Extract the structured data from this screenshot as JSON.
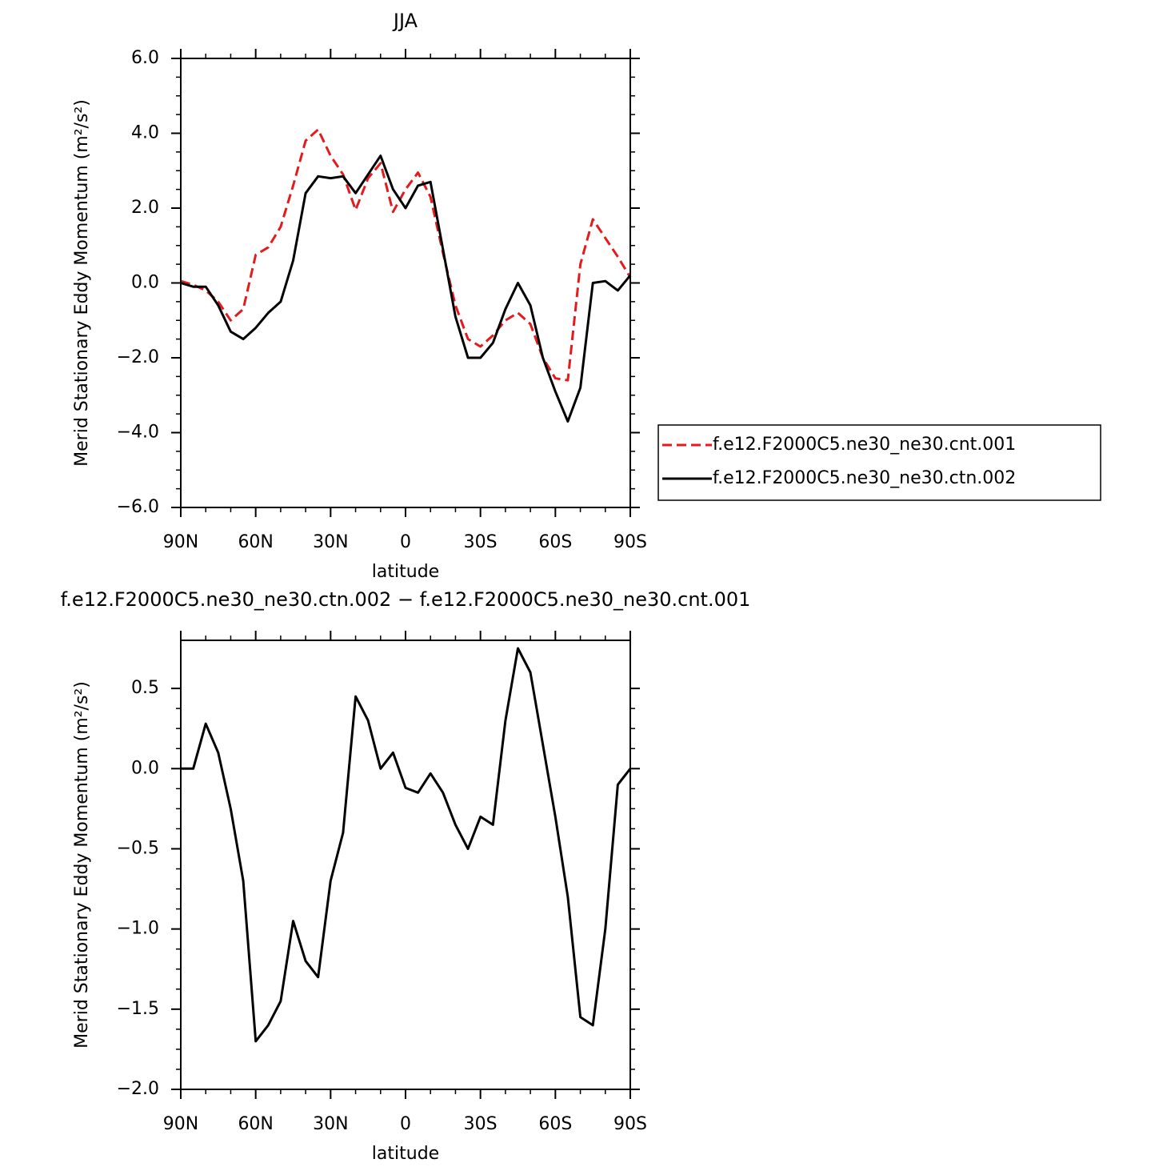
{
  "chart_data": [
    {
      "type": "line",
      "title": "JJA",
      "ylabel": "Merid Stationary Eddy Momentum (m²/s²)",
      "xlabel": "latitude",
      "x": [
        90,
        85,
        80,
        75,
        70,
        65,
        60,
        55,
        50,
        45,
        40,
        35,
        30,
        25,
        20,
        15,
        10,
        5,
        0,
        -5,
        -10,
        -15,
        -20,
        -25,
        -30,
        -35,
        -40,
        -45,
        -50,
        -55,
        -60,
        -65,
        -70,
        -75,
        -80,
        -85,
        -90
      ],
      "xlim": [
        90,
        -90
      ],
      "xticks": [
        {
          "value": 90,
          "label": "90N"
        },
        {
          "value": 60,
          "label": "60N"
        },
        {
          "value": 30,
          "label": "30N"
        },
        0,
        {
          "value": -30,
          "label": "30S"
        },
        {
          "value": -60,
          "label": "60S"
        },
        {
          "value": -90,
          "label": "90S"
        }
      ],
      "ylim": [
        -6,
        6
      ],
      "yticks": [
        {
          "value": -6,
          "label": "−6.0"
        },
        {
          "value": -4,
          "label": "−4.0"
        },
        {
          "value": -2,
          "label": "−2.0"
        },
        {
          "value": 0,
          "label": "0.0"
        },
        {
          "value": 2,
          "label": "2.0"
        },
        {
          "value": 4,
          "label": "4.0"
        },
        {
          "value": 6,
          "label": "6.0"
        }
      ],
      "series": [
        {
          "name": "f.e12.F2000C5.ne30_ne30.cnt.001",
          "color": "#e41a1c",
          "dashed": true,
          "values": [
            0.05,
            -0.05,
            -0.2,
            -0.5,
            -1.0,
            -0.7,
            0.75,
            0.95,
            1.5,
            2.6,
            3.8,
            4.1,
            3.4,
            2.9,
            1.95,
            2.8,
            3.2,
            1.9,
            2.5,
            2.95,
            2.3,
            0.8,
            -0.6,
            -1.5,
            -1.7,
            -1.4,
            -1.0,
            -0.8,
            -1.1,
            -2.0,
            -2.55,
            -2.6,
            0.5,
            1.7,
            1.2,
            0.7,
            0.15
          ]
        },
        {
          "name": "f.e12.F2000C5.ne30_ne30.ctn.002",
          "color": "#000000",
          "dashed": false,
          "values": [
            0.0,
            -0.1,
            -0.1,
            -0.6,
            -1.3,
            -1.5,
            -1.2,
            -0.8,
            -0.5,
            0.6,
            2.4,
            2.85,
            2.8,
            2.85,
            2.4,
            2.9,
            3.4,
            2.5,
            2.0,
            2.6,
            2.7,
            0.9,
            -0.9,
            -2.0,
            -2.0,
            -1.6,
            -0.7,
            0.0,
            -0.6,
            -2.0,
            -2.9,
            -3.7,
            -2.8,
            0.0,
            0.05,
            -0.2,
            0.2
          ]
        }
      ]
    },
    {
      "type": "line",
      "title": "f.e12.F2000C5.ne30_ne30.ctn.002 − f.e12.F2000C5.ne30_ne30.cnt.001",
      "ylabel": "Merid Stationary Eddy Momentum (m²/s²)",
      "xlabel": "latitude",
      "x": [
        90,
        85,
        80,
        75,
        70,
        65,
        60,
        55,
        50,
        45,
        40,
        35,
        30,
        25,
        20,
        15,
        10,
        5,
        0,
        -5,
        -10,
        -15,
        -20,
        -25,
        -30,
        -35,
        -40,
        -45,
        -50,
        -55,
        -60,
        -65,
        -70,
        -75,
        -80,
        -85,
        -90
      ],
      "xlim": [
        90,
        -90
      ],
      "xticks": [
        {
          "value": 90,
          "label": "90N"
        },
        {
          "value": 60,
          "label": "60N"
        },
        {
          "value": 30,
          "label": "30N"
        },
        0,
        {
          "value": -30,
          "label": "30S"
        },
        {
          "value": -60,
          "label": "60S"
        },
        {
          "value": -90,
          "label": "90S"
        }
      ],
      "ylim": [
        -2,
        0.8
      ],
      "yticks": [
        {
          "value": -2,
          "label": "−2.0"
        },
        {
          "value": -1.5,
          "label": "−1.5"
        },
        {
          "value": -1,
          "label": "−1.0"
        },
        {
          "value": -0.5,
          "label": "−0.5"
        },
        {
          "value": 0,
          "label": "0.0"
        },
        0.5
      ],
      "color": "#000000",
      "values": [
        0.0,
        0.0,
        0.28,
        0.1,
        -0.25,
        -0.7,
        -1.7,
        -1.6,
        -1.45,
        -0.95,
        -1.2,
        -1.3,
        -0.7,
        -0.4,
        0.45,
        0.3,
        0.0,
        0.1,
        -0.12,
        -0.15,
        -0.03,
        -0.15,
        -0.35,
        -0.5,
        -0.3,
        -0.35,
        0.3,
        0.75,
        0.6,
        0.15,
        -0.3,
        -0.8,
        -1.55,
        -1.6,
        -1.0,
        -0.1,
        0.0
      ]
    }
  ]
}
